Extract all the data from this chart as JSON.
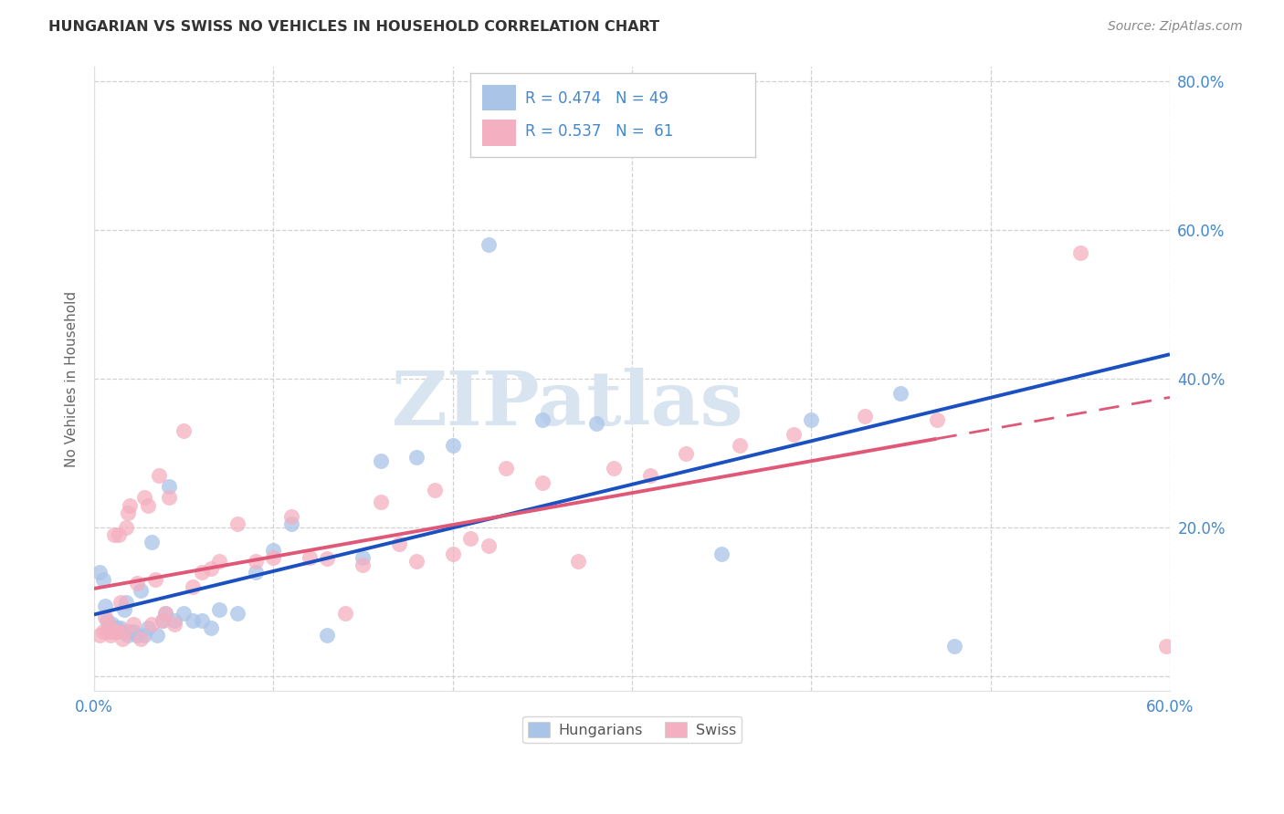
{
  "title": "HUNGARIAN VS SWISS NO VEHICLES IN HOUSEHOLD CORRELATION CHART",
  "source": "Source: ZipAtlas.com",
  "ylabel": "No Vehicles in Household",
  "xlim": [
    0.0,
    0.6
  ],
  "ylim": [
    -0.02,
    0.82
  ],
  "xticks": [
    0.0,
    0.1,
    0.2,
    0.3,
    0.4,
    0.5,
    0.6
  ],
  "yticks": [
    0.0,
    0.2,
    0.4,
    0.6,
    0.8
  ],
  "xticklabels": [
    "0.0%",
    "",
    "",
    "",
    "",
    "",
    "60.0%"
  ],
  "yticklabels": [
    "",
    "20.0%",
    "40.0%",
    "60.0%",
    "80.0%"
  ],
  "hungarian_R": 0.474,
  "hungarian_N": 49,
  "swiss_R": 0.537,
  "swiss_N": 61,
  "hungarian_color": "#aac4e8",
  "swiss_color": "#f4afc0",
  "trend_hungarian_color": "#1a50c0",
  "trend_swiss_color": "#e05878",
  "text_color": "#4488cc",
  "grid_color": "#cccccc",
  "watermark_color": "#d8e4f0",
  "hungarian_x": [
    0.003,
    0.005,
    0.006,
    0.007,
    0.008,
    0.009,
    0.01,
    0.011,
    0.012,
    0.013,
    0.014,
    0.015,
    0.016,
    0.017,
    0.018,
    0.019,
    0.02,
    0.022,
    0.024,
    0.026,
    0.028,
    0.03,
    0.032,
    0.035,
    0.038,
    0.04,
    0.042,
    0.045,
    0.05,
    0.055,
    0.06,
    0.065,
    0.07,
    0.08,
    0.09,
    0.1,
    0.11,
    0.13,
    0.15,
    0.16,
    0.18,
    0.2,
    0.22,
    0.25,
    0.28,
    0.35,
    0.4,
    0.45,
    0.48
  ],
  "hungarian_y": [
    0.14,
    0.13,
    0.095,
    0.075,
    0.065,
    0.06,
    0.07,
    0.065,
    0.06,
    0.065,
    0.06,
    0.065,
    0.06,
    0.09,
    0.1,
    0.055,
    0.06,
    0.06,
    0.055,
    0.115,
    0.055,
    0.065,
    0.18,
    0.055,
    0.075,
    0.085,
    0.255,
    0.075,
    0.085,
    0.075,
    0.075,
    0.065,
    0.09,
    0.085,
    0.14,
    0.17,
    0.205,
    0.055,
    0.16,
    0.29,
    0.295,
    0.31,
    0.58,
    0.345,
    0.34,
    0.165,
    0.345,
    0.38,
    0.04
  ],
  "swiss_x": [
    0.003,
    0.005,
    0.006,
    0.007,
    0.008,
    0.009,
    0.01,
    0.011,
    0.012,
    0.013,
    0.014,
    0.015,
    0.016,
    0.017,
    0.018,
    0.019,
    0.02,
    0.022,
    0.024,
    0.026,
    0.028,
    0.03,
    0.032,
    0.034,
    0.036,
    0.038,
    0.04,
    0.042,
    0.045,
    0.05,
    0.055,
    0.06,
    0.065,
    0.07,
    0.08,
    0.09,
    0.1,
    0.11,
    0.12,
    0.13,
    0.14,
    0.15,
    0.16,
    0.17,
    0.18,
    0.19,
    0.2,
    0.21,
    0.22,
    0.23,
    0.25,
    0.27,
    0.29,
    0.31,
    0.33,
    0.36,
    0.39,
    0.43,
    0.47,
    0.55,
    0.598
  ],
  "swiss_y": [
    0.055,
    0.06,
    0.08,
    0.06,
    0.07,
    0.055,
    0.06,
    0.19,
    0.06,
    0.06,
    0.19,
    0.1,
    0.05,
    0.06,
    0.2,
    0.22,
    0.23,
    0.07,
    0.125,
    0.05,
    0.24,
    0.23,
    0.07,
    0.13,
    0.27,
    0.075,
    0.085,
    0.24,
    0.07,
    0.33,
    0.12,
    0.14,
    0.145,
    0.155,
    0.205,
    0.155,
    0.16,
    0.215,
    0.16,
    0.158,
    0.085,
    0.15,
    0.235,
    0.178,
    0.155,
    0.25,
    0.165,
    0.185,
    0.175,
    0.28,
    0.26,
    0.155,
    0.28,
    0.27,
    0.3,
    0.31,
    0.325,
    0.35,
    0.345,
    0.57,
    0.04
  ]
}
